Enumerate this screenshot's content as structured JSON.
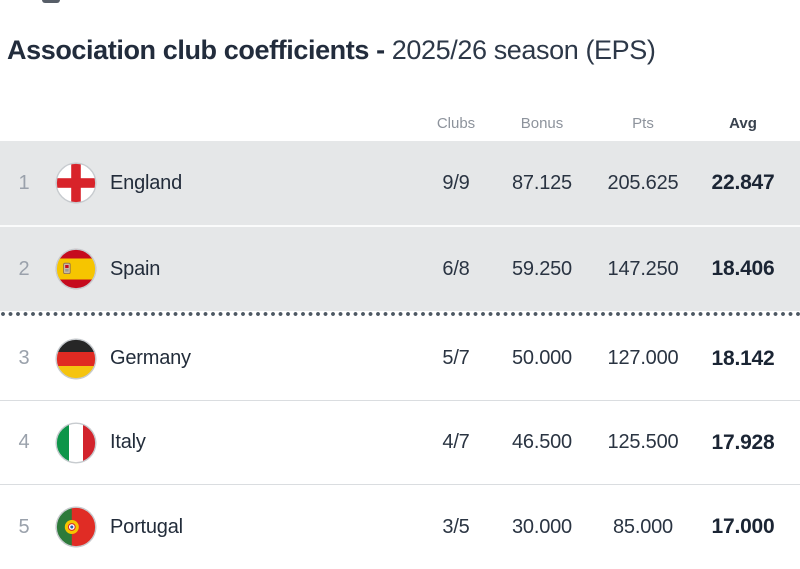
{
  "title": {
    "main": "Association club coefficients -",
    "season": "2025/26 season (EPS)"
  },
  "table": {
    "headers": {
      "clubs": "Clubs",
      "bonus": "Bonus",
      "pts": "Pts",
      "avg": "Avg"
    },
    "rows": [
      {
        "rank": "1",
        "country": "England",
        "flag_icon": "england-flag-icon",
        "clubs": "9/9",
        "bonus": "87.125",
        "pts": "205.625",
        "avg": "22.847",
        "highlighted": true
      },
      {
        "rank": "2",
        "country": "Spain",
        "flag_icon": "spain-flag-icon",
        "clubs": "6/8",
        "bonus": "59.250",
        "pts": "147.250",
        "avg": "18.406",
        "highlighted": true
      },
      {
        "rank": "3",
        "country": "Germany",
        "flag_icon": "germany-flag-icon",
        "clubs": "5/7",
        "bonus": "50.000",
        "pts": "127.000",
        "avg": "18.142",
        "highlighted": false
      },
      {
        "rank": "4",
        "country": "Italy",
        "flag_icon": "italy-flag-icon",
        "clubs": "4/7",
        "bonus": "46.500",
        "pts": "125.500",
        "avg": "17.928",
        "highlighted": false
      },
      {
        "rank": "5",
        "country": "Portugal",
        "flag_icon": "portugal-flag-icon",
        "clubs": "3/5",
        "bonus": "30.000",
        "pts": "85.000",
        "avg": "17.000",
        "highlighted": false
      }
    ],
    "cutoff_after_rank": "2"
  },
  "colors": {
    "highlight_row_bg": "#e5e7e8",
    "title_text": "#222c3c",
    "header_text": "#8d939c",
    "avg_header_text": "#39424e",
    "value_text": "#2a3442",
    "avg_value_text": "#1b2534",
    "rank_text": "#9aa1ab",
    "row_divider": "#dadde0",
    "cutoff_dots": "#4d5863",
    "england_red": "#d8232a",
    "spain_red": "#c60b1e",
    "spain_yellow": "#f6c500",
    "germany_black": "#262626",
    "germany_red": "#e02a22",
    "germany_gold": "#f5c40f",
    "italy_green": "#0d9549",
    "italy_red": "#d2232c",
    "portugal_green": "#2d7a3a",
    "portugal_red": "#e02c25"
  }
}
